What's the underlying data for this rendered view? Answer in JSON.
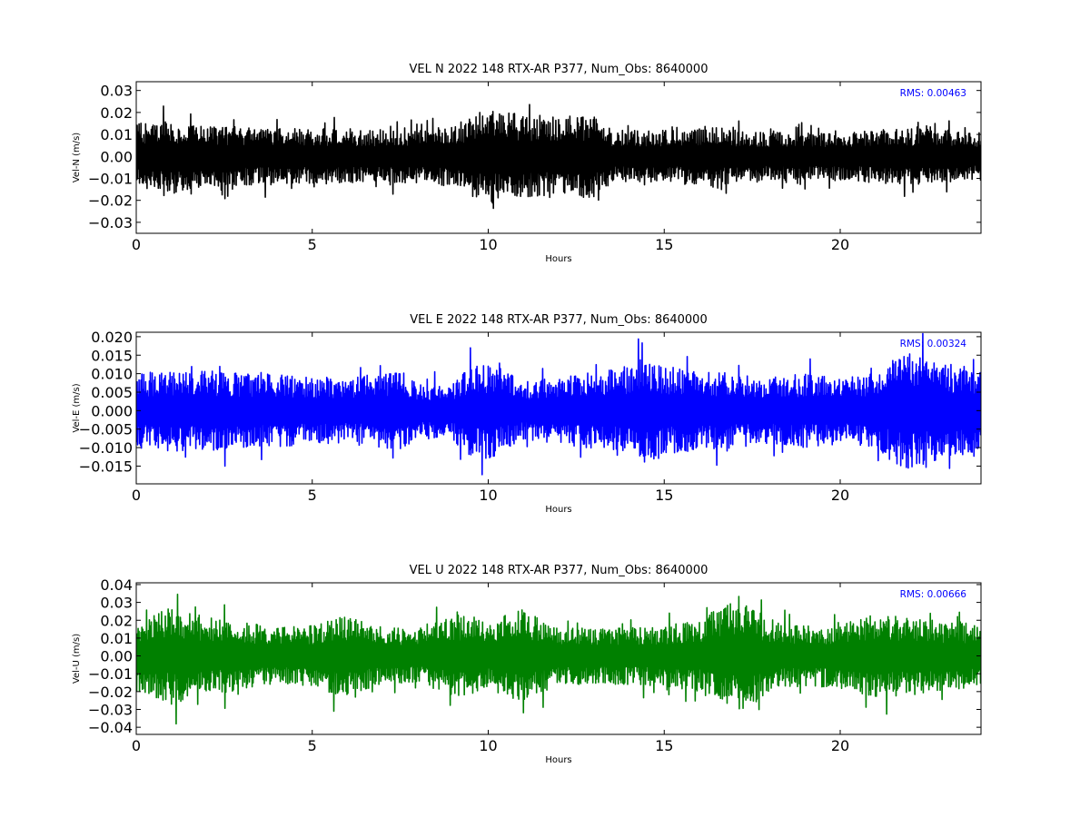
{
  "chart_data": [
    {
      "type": "line",
      "title": "VEL N 2022 148 RTX-AR  P377, Num_Obs: 8640000",
      "xlabel": "Hours",
      "ylabel": "Vel-N (m/s)",
      "xlim": [
        0,
        24
      ],
      "ylim": [
        -0.035,
        0.034
      ],
      "xticks": [
        0,
        5,
        10,
        15,
        20
      ],
      "xtick_labels": [
        "0",
        "5",
        "10",
        "15",
        "20"
      ],
      "yticks": [
        -0.03,
        -0.02,
        -0.01,
        0.0,
        0.01,
        0.02,
        0.03
      ],
      "ytick_labels": [
        "−0.03",
        "−0.02",
        "−0.01",
        "0.00",
        "0.01",
        "0.02",
        "0.03"
      ],
      "rms_label": "RMS:  0.00463",
      "color": "#000000",
      "grid": false,
      "series": [
        {
          "name": "",
          "envelope": {
            "hours": [
              0,
              1,
              2,
              3,
              4,
              5,
              6,
              7,
              8,
              9,
              9.5,
              10,
              10.5,
              11,
              12,
              13,
              13.5,
              14,
              15,
              16,
              16.5,
              17,
              18,
              19,
              20,
              21,
              22,
              22.5,
              23,
              24
            ],
            "amplitude": [
              0.015,
              0.016,
              0.014,
              0.013,
              0.013,
              0.013,
              0.012,
              0.012,
              0.012,
              0.014,
              0.018,
              0.022,
              0.02,
              0.019,
              0.019,
              0.019,
              0.012,
              0.012,
              0.012,
              0.013,
              0.015,
              0.012,
              0.011,
              0.011,
              0.011,
              0.012,
              0.013,
              0.014,
              0.012,
              0.011
            ]
          }
        }
      ]
    },
    {
      "type": "line",
      "title": "VEL E 2022 148 RTX-AR  P377, Num_Obs: 8640000",
      "xlabel": "Hours",
      "ylabel": "Vel-E (m/s)",
      "xlim": [
        0,
        24
      ],
      "ylim": [
        -0.0198,
        0.0212
      ],
      "xticks": [
        0,
        5,
        10,
        15,
        20
      ],
      "xtick_labels": [
        "0",
        "5",
        "10",
        "15",
        "20"
      ],
      "yticks": [
        -0.015,
        -0.01,
        -0.005,
        0.0,
        0.005,
        0.01,
        0.015,
        0.02
      ],
      "ytick_labels": [
        "−0.015",
        "−0.010",
        "−0.005",
        "0.000",
        "0.005",
        "0.010",
        "0.015",
        "0.020"
      ],
      "rms_label": "RMS:  0.00324",
      "color": "#0000ff",
      "grid": false,
      "series": [
        {
          "name": "",
          "envelope": {
            "hours": [
              0,
              1,
              2,
              3,
              4,
              5,
              6,
              7,
              7.5,
              8,
              9,
              9.5,
              10,
              10.5,
              11,
              12,
              13,
              14,
              14.5,
              15,
              16,
              17,
              18,
              19,
              20,
              21,
              21.5,
              22,
              23,
              24
            ],
            "amplitude": [
              0.01,
              0.011,
              0.011,
              0.01,
              0.01,
              0.009,
              0.009,
              0.01,
              0.011,
              0.007,
              0.008,
              0.012,
              0.013,
              0.011,
              0.008,
              0.009,
              0.011,
              0.012,
              0.015,
              0.012,
              0.011,
              0.01,
              0.009,
              0.01,
              0.009,
              0.01,
              0.014,
              0.016,
              0.013,
              0.011
            ]
          }
        }
      ]
    },
    {
      "type": "line",
      "title": "VEL U 2022 148 RTX-AR  P377, Num_Obs: 8640000",
      "xlabel": "Hours",
      "ylabel": "Vel-U (m/s)",
      "xlim": [
        0,
        24
      ],
      "ylim": [
        -0.044,
        0.041
      ],
      "xticks": [
        0,
        5,
        10,
        15,
        20
      ],
      "xtick_labels": [
        "0",
        "5",
        "10",
        "15",
        "20"
      ],
      "yticks": [
        -0.04,
        -0.03,
        -0.02,
        -0.01,
        0.0,
        0.01,
        0.02,
        0.03,
        0.04
      ],
      "ytick_labels": [
        "−0.04",
        "−0.03",
        "−0.02",
        "−0.01",
        "0.00",
        "0.01",
        "0.02",
        "0.03",
        "0.04"
      ],
      "rms_label": "RMS:  0.00666",
      "color": "#008000",
      "grid": false,
      "series": [
        {
          "name": "",
          "envelope": {
            "hours": [
              0,
              1,
              2,
              3,
              4,
              5,
              5.5,
              6,
              7,
              8,
              9,
              9.5,
              10,
              10.5,
              11,
              12,
              13,
              14,
              15,
              16,
              16.5,
              17,
              17.5,
              18,
              19,
              20,
              21,
              22,
              23,
              24
            ],
            "amplitude": [
              0.02,
              0.027,
              0.022,
              0.019,
              0.016,
              0.017,
              0.022,
              0.022,
              0.016,
              0.015,
              0.023,
              0.024,
              0.017,
              0.024,
              0.026,
              0.016,
              0.016,
              0.016,
              0.017,
              0.02,
              0.027,
              0.03,
              0.029,
              0.019,
              0.017,
              0.018,
              0.024,
              0.022,
              0.019,
              0.018
            ]
          }
        }
      ]
    }
  ]
}
